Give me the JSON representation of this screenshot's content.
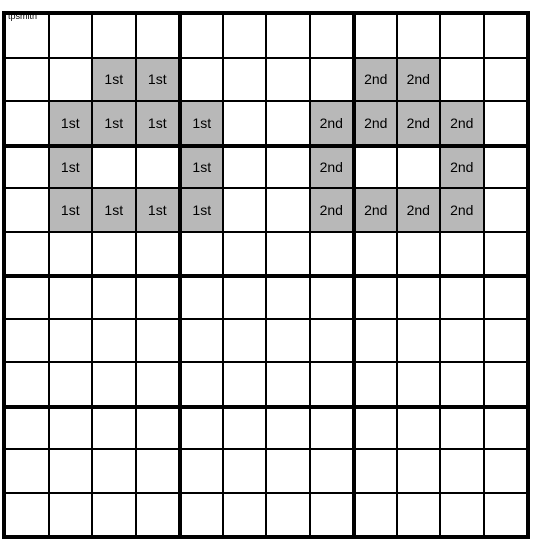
{
  "credit": "tpsmith",
  "grid": {
    "rows": 12,
    "cols": 12,
    "cell_size": 44,
    "border_color": "#000000",
    "background_color": "#ffffff",
    "shaded_color": "#b8b8b8",
    "font_size": 14,
    "region_rows": 3,
    "region_cols": 4
  },
  "cells": [
    {
      "r": 1,
      "c": 2,
      "label": "1st",
      "shaded": true
    },
    {
      "r": 1,
      "c": 3,
      "label": "1st",
      "shaded": true
    },
    {
      "r": 1,
      "c": 8,
      "label": "2nd",
      "shaded": true
    },
    {
      "r": 1,
      "c": 9,
      "label": "2nd",
      "shaded": true
    },
    {
      "r": 2,
      "c": 1,
      "label": "1st",
      "shaded": true
    },
    {
      "r": 2,
      "c": 2,
      "label": "1st",
      "shaded": true
    },
    {
      "r": 2,
      "c": 3,
      "label": "1st",
      "shaded": true
    },
    {
      "r": 2,
      "c": 4,
      "label": "1st",
      "shaded": true
    },
    {
      "r": 2,
      "c": 7,
      "label": "2nd",
      "shaded": true
    },
    {
      "r": 2,
      "c": 8,
      "label": "2nd",
      "shaded": true
    },
    {
      "r": 2,
      "c": 9,
      "label": "2nd",
      "shaded": true
    },
    {
      "r": 2,
      "c": 10,
      "label": "2nd",
      "shaded": true
    },
    {
      "r": 3,
      "c": 1,
      "label": "1st",
      "shaded": true
    },
    {
      "r": 3,
      "c": 4,
      "label": "1st",
      "shaded": true
    },
    {
      "r": 3,
      "c": 7,
      "label": "2nd",
      "shaded": true
    },
    {
      "r": 3,
      "c": 10,
      "label": "2nd",
      "shaded": true
    },
    {
      "r": 4,
      "c": 1,
      "label": "1st",
      "shaded": true
    },
    {
      "r": 4,
      "c": 2,
      "label": "1st",
      "shaded": true
    },
    {
      "r": 4,
      "c": 3,
      "label": "1st",
      "shaded": true
    },
    {
      "r": 4,
      "c": 4,
      "label": "1st",
      "shaded": true
    },
    {
      "r": 4,
      "c": 7,
      "label": "2nd",
      "shaded": true
    },
    {
      "r": 4,
      "c": 8,
      "label": "2nd",
      "shaded": true
    },
    {
      "r": 4,
      "c": 9,
      "label": "2nd",
      "shaded": true
    },
    {
      "r": 4,
      "c": 10,
      "label": "2nd",
      "shaded": true
    }
  ]
}
